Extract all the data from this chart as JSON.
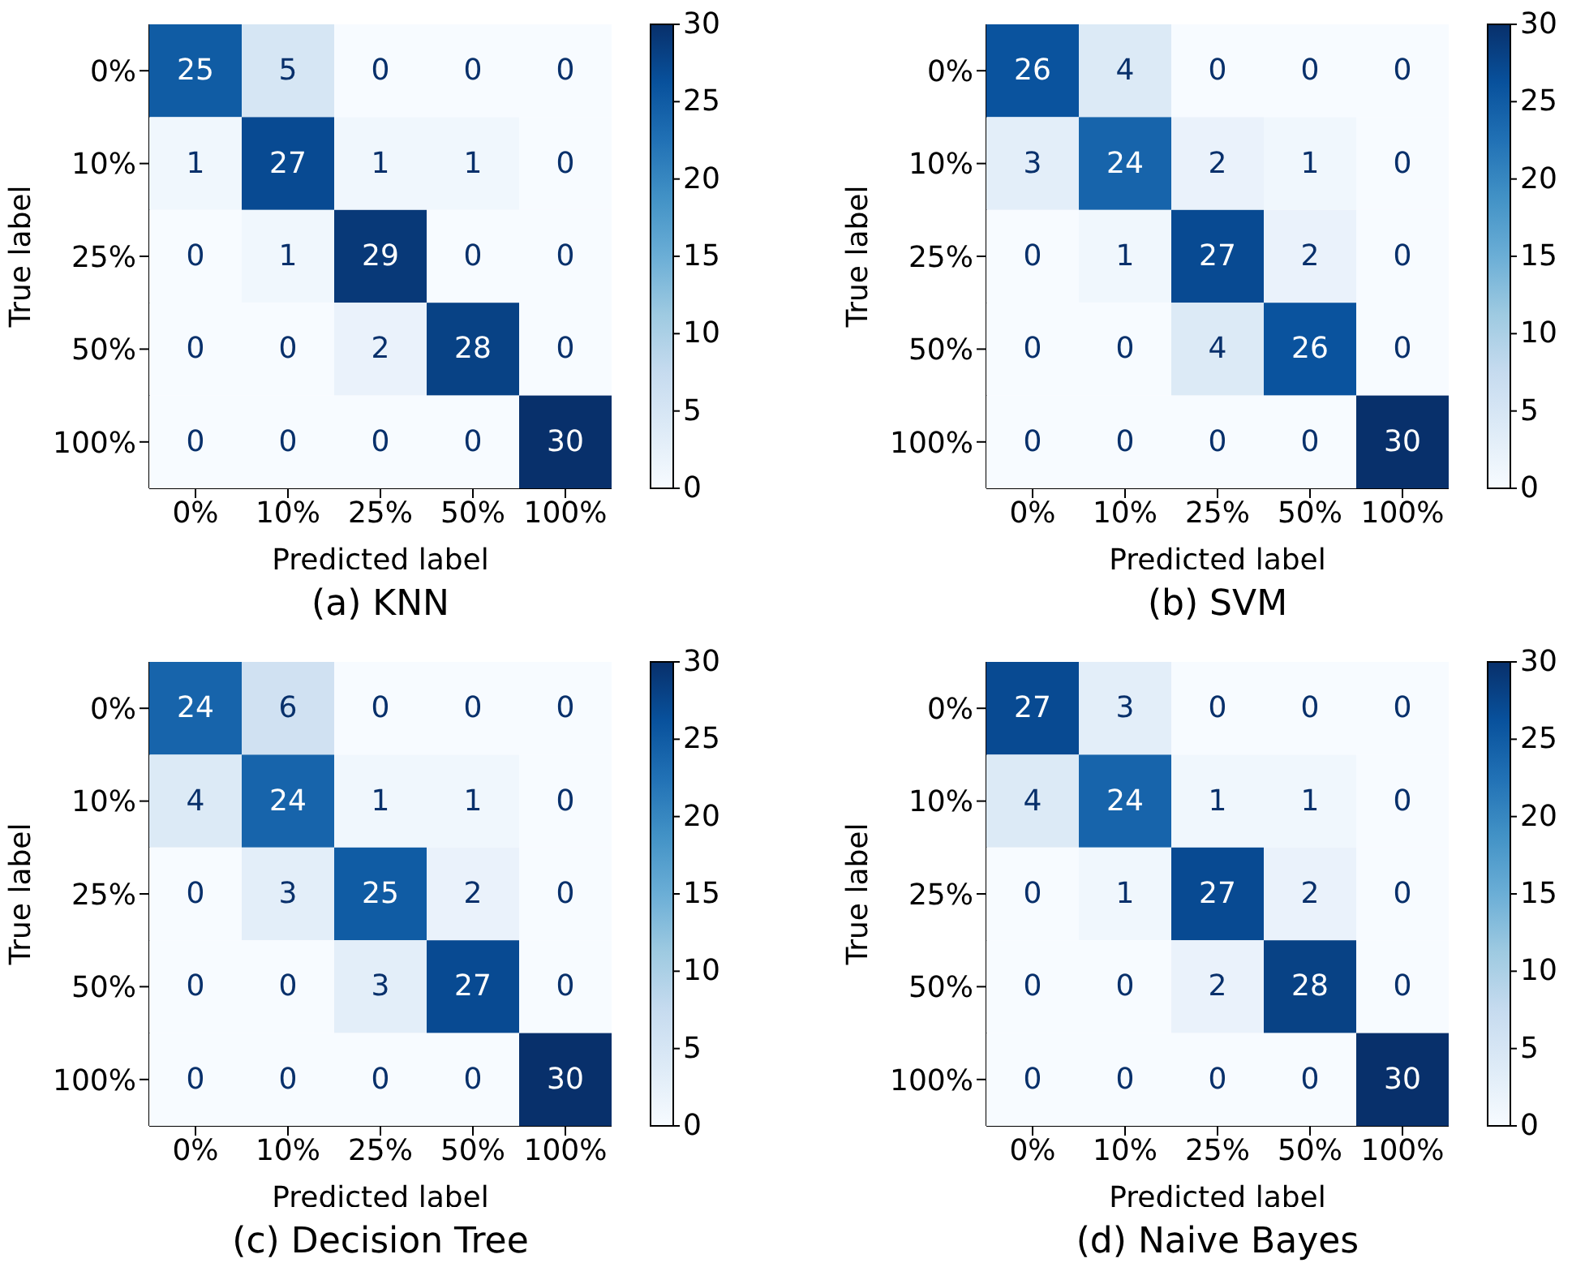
{
  "chart_data": [
    {
      "type": "heatmap",
      "title": "(a) KNN",
      "xlabel": "Predicted label",
      "ylabel": "True label",
      "categories": [
        "0%",
        "10%",
        "25%",
        "50%",
        "100%"
      ],
      "y_categories": [
        "0%",
        "10%",
        "25%",
        "50%",
        "100%"
      ],
      "cells": [
        [
          25,
          5,
          0,
          0,
          0
        ],
        [
          1,
          27,
          1,
          1,
          0
        ],
        [
          0,
          1,
          29,
          0,
          0
        ],
        [
          0,
          0,
          2,
          28,
          0
        ],
        [
          0,
          0,
          0,
          0,
          30
        ]
      ],
      "clim": [
        0,
        30
      ],
      "cticks": [
        0,
        5,
        10,
        15,
        20,
        25,
        30
      ],
      "data_labels": true
    },
    {
      "type": "heatmap",
      "title": "(b) SVM",
      "xlabel": "Predicted label",
      "ylabel": "True label",
      "categories": [
        "0%",
        "10%",
        "25%",
        "50%",
        "100%"
      ],
      "y_categories": [
        "0%",
        "10%",
        "25%",
        "50%",
        "100%"
      ],
      "cells": [
        [
          26,
          4,
          0,
          0,
          0
        ],
        [
          3,
          24,
          2,
          1,
          0
        ],
        [
          0,
          1,
          27,
          2,
          0
        ],
        [
          0,
          0,
          4,
          26,
          0
        ],
        [
          0,
          0,
          0,
          0,
          30
        ]
      ],
      "clim": [
        0,
        30
      ],
      "cticks": [
        0,
        5,
        10,
        15,
        20,
        25,
        30
      ],
      "data_labels": true
    },
    {
      "type": "heatmap",
      "title": "(c) Decision Tree",
      "xlabel": "Predicted label",
      "ylabel": "True label",
      "categories": [
        "0%",
        "10%",
        "25%",
        "50%",
        "100%"
      ],
      "y_categories": [
        "0%",
        "10%",
        "25%",
        "50%",
        "100%"
      ],
      "cells": [
        [
          24,
          6,
          0,
          0,
          0
        ],
        [
          4,
          24,
          1,
          1,
          0
        ],
        [
          0,
          3,
          25,
          2,
          0
        ],
        [
          0,
          0,
          3,
          27,
          0
        ],
        [
          0,
          0,
          0,
          0,
          30
        ]
      ],
      "clim": [
        0,
        30
      ],
      "cticks": [
        0,
        5,
        10,
        15,
        20,
        25,
        30
      ],
      "data_labels": true
    },
    {
      "type": "heatmap",
      "title": "(d) Naive Bayes",
      "xlabel": "Predicted label",
      "ylabel": "True label",
      "categories": [
        "0%",
        "10%",
        "25%",
        "50%",
        "100%"
      ],
      "y_categories": [
        "0%",
        "10%",
        "25%",
        "50%",
        "100%"
      ],
      "cells": [
        [
          27,
          3,
          0,
          0,
          0
        ],
        [
          4,
          24,
          1,
          1,
          0
        ],
        [
          0,
          1,
          27,
          2,
          0
        ],
        [
          0,
          0,
          2,
          28,
          0
        ],
        [
          0,
          0,
          0,
          0,
          30
        ]
      ],
      "clim": [
        0,
        30
      ],
      "cticks": [
        0,
        5,
        10,
        15,
        20,
        25,
        30
      ],
      "data_labels": true
    }
  ]
}
